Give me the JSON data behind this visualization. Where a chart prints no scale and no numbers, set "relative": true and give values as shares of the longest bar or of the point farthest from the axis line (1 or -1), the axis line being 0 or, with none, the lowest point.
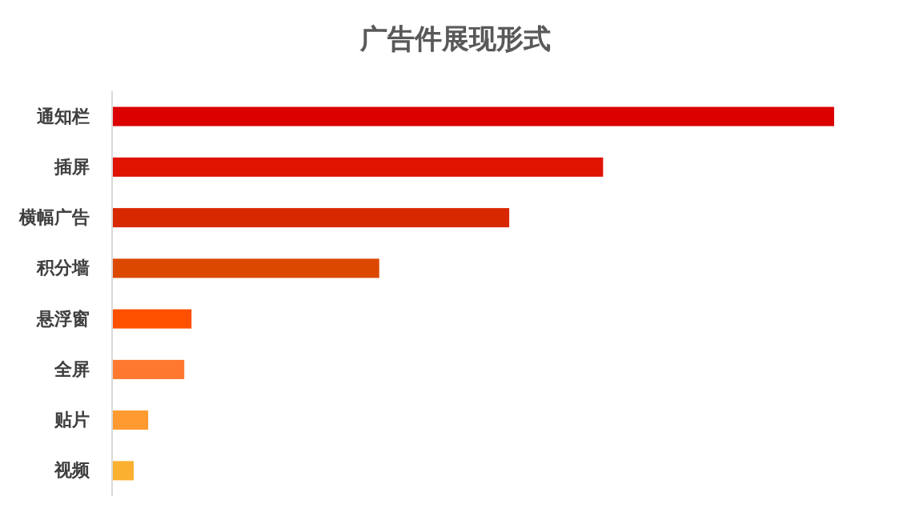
{
  "chart_data": {
    "type": "bar",
    "orientation": "horizontal",
    "relative": true,
    "title": "广告件展现形式",
    "categories": [
      "通知栏",
      "插屏",
      "横幅广告",
      "积分墙",
      "悬浮窗",
      "全屏",
      "贴片",
      "视频"
    ],
    "values": [
      1,
      0.68,
      0.55,
      0.37,
      0.11,
      0.1,
      0.05,
      0.03
    ],
    "colors": [
      "#dc0000",
      "#e01200",
      "#d82800",
      "#dc4800",
      "#ff5000",
      "#ff7830",
      "#ff9a30",
      "#fcb030"
    ]
  }
}
